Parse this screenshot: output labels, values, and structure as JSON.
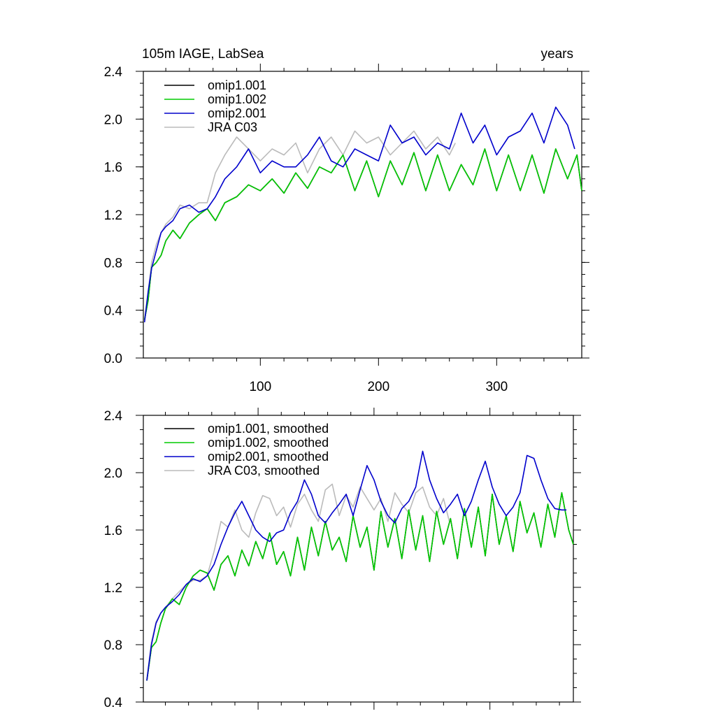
{
  "chart_data": [
    {
      "type": "line",
      "title_left": "105m IAGE, LabSea",
      "title_right": "years",
      "xlim": [
        1,
        372
      ],
      "ylim": [
        0.0,
        2.4
      ],
      "x_ticks": [
        100,
        200,
        300
      ],
      "x_tick_labels": [
        "100",
        "200",
        "300"
      ],
      "y_ticks": [
        0.0,
        0.4,
        0.8,
        1.2,
        1.6,
        2.0,
        2.4
      ],
      "y_tick_labels": [
        "0.0",
        "0.4",
        "0.8",
        "1.2",
        "1.6",
        "2.0",
        "2.4"
      ],
      "grid": false,
      "legend_position": "top-left",
      "series": [
        {
          "name": "omip1.001",
          "color": "#000000",
          "hidden_under": "omip1.002",
          "x": [
            2,
            5,
            8,
            12,
            16,
            20,
            26,
            32,
            40,
            48,
            55,
            62,
            70,
            80,
            90,
            100,
            110,
            120,
            130,
            140,
            150,
            160,
            170,
            180,
            190,
            200,
            210,
            220,
            230,
            240,
            250,
            260,
            270,
            280,
            290,
            300,
            310,
            320,
            330,
            340,
            350,
            360,
            368,
            372
          ],
          "y": [
            0.32,
            0.48,
            0.76,
            0.8,
            0.86,
            0.98,
            1.07,
            1.0,
            1.13,
            1.2,
            1.25,
            1.15,
            1.3,
            1.35,
            1.45,
            1.4,
            1.5,
            1.38,
            1.55,
            1.42,
            1.6,
            1.55,
            1.7,
            1.4,
            1.65,
            1.35,
            1.65,
            1.45,
            1.72,
            1.4,
            1.7,
            1.4,
            1.62,
            1.45,
            1.75,
            1.4,
            1.7,
            1.4,
            1.7,
            1.38,
            1.75,
            1.5,
            1.7,
            1.4
          ]
        },
        {
          "name": "omip1.002",
          "color": "#00cc00",
          "x": [
            2,
            5,
            8,
            12,
            16,
            20,
            26,
            32,
            40,
            48,
            55,
            62,
            70,
            80,
            90,
            100,
            110,
            120,
            130,
            140,
            150,
            160,
            170,
            180,
            190,
            200,
            210,
            220,
            230,
            240,
            250,
            260,
            270,
            280,
            290,
            300,
            310,
            320,
            330,
            340,
            350,
            360,
            368,
            372
          ],
          "y": [
            0.32,
            0.48,
            0.76,
            0.8,
            0.86,
            0.98,
            1.07,
            1.0,
            1.13,
            1.2,
            1.25,
            1.15,
            1.3,
            1.35,
            1.45,
            1.4,
            1.5,
            1.38,
            1.55,
            1.42,
            1.6,
            1.55,
            1.7,
            1.4,
            1.65,
            1.35,
            1.65,
            1.45,
            1.72,
            1.4,
            1.7,
            1.4,
            1.62,
            1.45,
            1.75,
            1.4,
            1.7,
            1.4,
            1.7,
            1.38,
            1.75,
            1.5,
            1.7,
            1.4
          ]
        },
        {
          "name": "omip2.001",
          "color": "#0000cc",
          "x": [
            2,
            5,
            8,
            12,
            16,
            20,
            26,
            32,
            40,
            48,
            55,
            62,
            70,
            80,
            90,
            100,
            110,
            120,
            130,
            140,
            150,
            160,
            170,
            180,
            190,
            200,
            210,
            220,
            230,
            240,
            250,
            260,
            270,
            280,
            290,
            300,
            310,
            320,
            330,
            340,
            350,
            360,
            366
          ],
          "y": [
            0.3,
            0.55,
            0.75,
            0.9,
            1.05,
            1.1,
            1.15,
            1.25,
            1.28,
            1.22,
            1.25,
            1.35,
            1.5,
            1.6,
            1.75,
            1.55,
            1.65,
            1.6,
            1.6,
            1.7,
            1.85,
            1.65,
            1.6,
            1.75,
            1.7,
            1.65,
            1.95,
            1.8,
            1.85,
            1.7,
            1.8,
            1.75,
            2.05,
            1.8,
            1.95,
            1.7,
            1.85,
            1.9,
            2.05,
            1.8,
            2.1,
            1.95,
            1.75
          ]
        },
        {
          "name": "JRA C03",
          "color": "#bbbbbb",
          "x": [
            2,
            5,
            8,
            12,
            16,
            20,
            26,
            32,
            40,
            48,
            55,
            62,
            70,
            80,
            90,
            100,
            110,
            120,
            130,
            140,
            150,
            160,
            170,
            180,
            190,
            200,
            210,
            220,
            230,
            240,
            250,
            260,
            265
          ],
          "y": [
            0.33,
            0.55,
            0.8,
            0.95,
            1.05,
            1.12,
            1.18,
            1.28,
            1.25,
            1.3,
            1.3,
            1.55,
            1.7,
            1.85,
            1.75,
            1.65,
            1.75,
            1.7,
            1.8,
            1.55,
            1.75,
            1.85,
            1.7,
            1.9,
            1.8,
            1.85,
            1.7,
            1.8,
            1.9,
            1.75,
            1.85,
            1.7,
            1.8
          ]
        }
      ]
    },
    {
      "type": "line",
      "xlim": [
        1,
        372
      ],
      "ylim": [
        0.4,
        2.4
      ],
      "x_ticks": [
        100,
        200,
        300
      ],
      "y_ticks": [
        0.4,
        0.8,
        1.2,
        1.6,
        2.0,
        2.4
      ],
      "y_tick_labels": [
        "0.4",
        "0.8",
        "1.2",
        "1.6",
        "2.0",
        "2.4"
      ],
      "grid": false,
      "legend_position": "top-left",
      "series": [
        {
          "name": "omip1.001, smoothed",
          "color": "#000000",
          "hidden_under": "omip1.002, smoothed",
          "x": [
            4,
            8,
            12,
            16,
            20,
            26,
            32,
            38,
            44,
            50,
            56,
            62,
            68,
            74,
            80,
            86,
            92,
            98,
            104,
            110,
            116,
            122,
            128,
            134,
            140,
            146,
            152,
            158,
            164,
            170,
            176,
            182,
            188,
            194,
            200,
            206,
            212,
            218,
            224,
            230,
            236,
            242,
            248,
            254,
            260,
            266,
            272,
            278,
            284,
            290,
            296,
            302,
            308,
            314,
            320,
            326,
            332,
            338,
            344,
            350,
            356,
            362,
            368,
            372
          ],
          "y": [
            0.55,
            0.78,
            0.82,
            0.95,
            1.05,
            1.12,
            1.08,
            1.2,
            1.28,
            1.32,
            1.3,
            1.18,
            1.36,
            1.42,
            1.28,
            1.46,
            1.35,
            1.52,
            1.4,
            1.58,
            1.36,
            1.45,
            1.28,
            1.55,
            1.32,
            1.62,
            1.42,
            1.66,
            1.46,
            1.55,
            1.38,
            1.7,
            1.48,
            1.62,
            1.32,
            1.73,
            1.48,
            1.68,
            1.4,
            1.74,
            1.46,
            1.7,
            1.38,
            1.73,
            1.5,
            1.68,
            1.4,
            1.75,
            1.48,
            1.76,
            1.42,
            1.85,
            1.5,
            1.7,
            1.45,
            1.8,
            1.58,
            1.72,
            1.48,
            1.78,
            1.55,
            1.86,
            1.6,
            1.5
          ]
        },
        {
          "name": "omip1.002, smoothed",
          "color": "#00cc00",
          "x": [
            4,
            8,
            12,
            16,
            20,
            26,
            32,
            38,
            44,
            50,
            56,
            62,
            68,
            74,
            80,
            86,
            92,
            98,
            104,
            110,
            116,
            122,
            128,
            134,
            140,
            146,
            152,
            158,
            164,
            170,
            176,
            182,
            188,
            194,
            200,
            206,
            212,
            218,
            224,
            230,
            236,
            242,
            248,
            254,
            260,
            266,
            272,
            278,
            284,
            290,
            296,
            302,
            308,
            314,
            320,
            326,
            332,
            338,
            344,
            350,
            356,
            362,
            368,
            372
          ],
          "y": [
            0.55,
            0.78,
            0.82,
            0.95,
            1.05,
            1.12,
            1.08,
            1.2,
            1.28,
            1.32,
            1.3,
            1.18,
            1.36,
            1.42,
            1.28,
            1.46,
            1.35,
            1.52,
            1.4,
            1.58,
            1.36,
            1.45,
            1.28,
            1.55,
            1.32,
            1.62,
            1.42,
            1.66,
            1.46,
            1.55,
            1.38,
            1.7,
            1.48,
            1.62,
            1.32,
            1.73,
            1.48,
            1.68,
            1.4,
            1.74,
            1.46,
            1.7,
            1.38,
            1.73,
            1.5,
            1.68,
            1.4,
            1.75,
            1.48,
            1.76,
            1.42,
            1.85,
            1.5,
            1.7,
            1.45,
            1.8,
            1.58,
            1.72,
            1.48,
            1.78,
            1.55,
            1.86,
            1.6,
            1.5
          ]
        },
        {
          "name": "omip2.001, smoothed",
          "color": "#0000cc",
          "x": [
            4,
            8,
            12,
            16,
            20,
            26,
            32,
            38,
            44,
            50,
            56,
            62,
            68,
            74,
            80,
            86,
            92,
            98,
            104,
            110,
            116,
            122,
            128,
            134,
            140,
            146,
            152,
            158,
            164,
            170,
            176,
            182,
            188,
            194,
            200,
            206,
            212,
            218,
            224,
            230,
            236,
            242,
            248,
            254,
            260,
            266,
            272,
            278,
            284,
            290,
            296,
            302,
            308,
            314,
            320,
            326,
            332,
            338,
            344,
            350,
            356,
            362,
            366
          ],
          "y": [
            0.55,
            0.8,
            0.95,
            1.02,
            1.06,
            1.1,
            1.15,
            1.22,
            1.26,
            1.24,
            1.28,
            1.36,
            1.5,
            1.62,
            1.72,
            1.8,
            1.7,
            1.6,
            1.55,
            1.52,
            1.58,
            1.6,
            1.72,
            1.8,
            1.95,
            1.85,
            1.7,
            1.65,
            1.72,
            1.78,
            1.85,
            1.7,
            1.88,
            2.05,
            1.95,
            1.8,
            1.7,
            1.65,
            1.75,
            1.8,
            1.9,
            2.15,
            1.95,
            1.82,
            1.72,
            1.78,
            1.85,
            1.7,
            1.8,
            1.95,
            2.08,
            1.9,
            1.78,
            1.7,
            1.76,
            1.86,
            2.12,
            2.1,
            1.95,
            1.82,
            1.75,
            1.74,
            1.74
          ]
        },
        {
          "name": "JRA C03, smoothed",
          "color": "#bbbbbb",
          "x": [
            4,
            8,
            12,
            16,
            20,
            26,
            32,
            38,
            44,
            50,
            56,
            62,
            68,
            74,
            80,
            86,
            92,
            98,
            104,
            110,
            116,
            122,
            128,
            134,
            140,
            146,
            152,
            158,
            164,
            170,
            176,
            182,
            188,
            194,
            200,
            206,
            212,
            218,
            224,
            230,
            236,
            242,
            248,
            254,
            260,
            265
          ],
          "y": [
            0.56,
            0.82,
            0.96,
            1.02,
            1.06,
            1.12,
            1.17,
            1.22,
            1.25,
            1.25,
            1.28,
            1.45,
            1.66,
            1.62,
            1.74,
            1.6,
            1.55,
            1.72,
            1.84,
            1.82,
            1.7,
            1.76,
            1.62,
            1.78,
            1.85,
            1.74,
            1.66,
            1.88,
            1.92,
            1.7,
            1.84,
            1.76,
            1.9,
            1.82,
            1.74,
            1.82,
            1.66,
            1.86,
            1.78,
            1.72,
            1.86,
            1.9,
            1.76,
            1.7,
            1.82,
            1.66
          ]
        }
      ]
    }
  ]
}
